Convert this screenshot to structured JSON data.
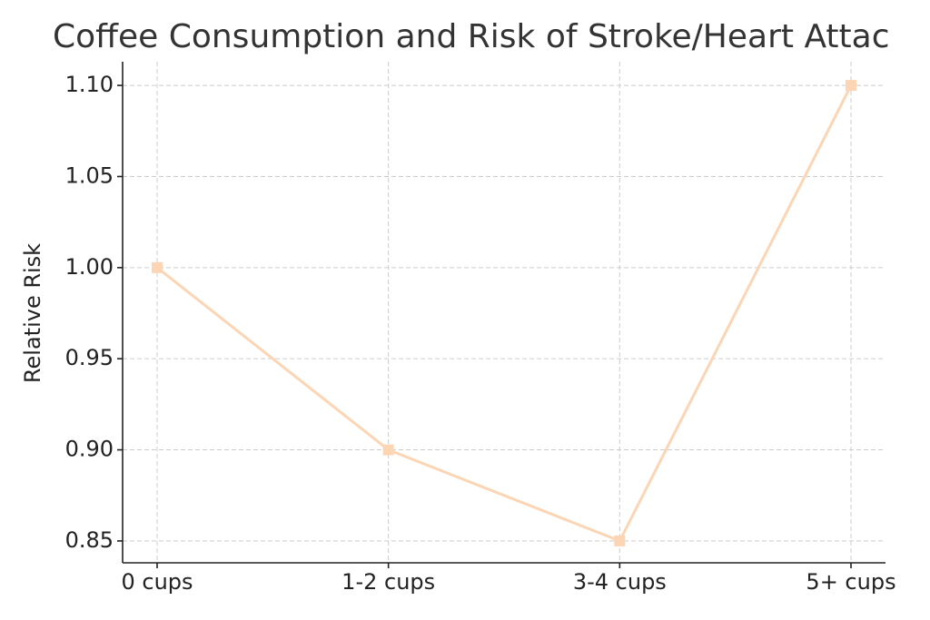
{
  "chart_data": {
    "type": "line",
    "title": "Coffee Consumption and Risk of Stroke/Heart Attac",
    "y_label": "Relative Risk",
    "categories": [
      "0 cups",
      "1-2 cups",
      "3-4 cups",
      "5+ cups"
    ],
    "series": [
      {
        "name": "Relative Risk",
        "color": "#fcd5b5",
        "values": [
          1.0,
          0.9,
          0.85,
          1.1
        ]
      }
    ],
    "ylim": [
      0.838,
      1.113
    ],
    "yticks": [
      0.85,
      {
        "value": 0.9,
        "label": "0.90"
      },
      0.95,
      {
        "value": 1.0,
        "label": "1.00"
      },
      1.05,
      {
        "value": 1.1,
        "label": "1.10"
      }
    ],
    "grid": true,
    "marker": "square"
  }
}
